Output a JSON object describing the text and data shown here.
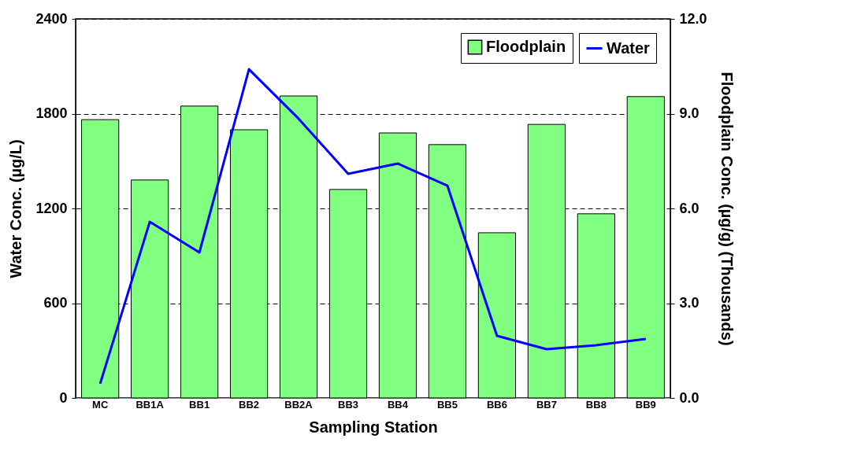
{
  "chart_data": {
    "type": "bar",
    "xlabel": "Sampling Station",
    "ylabel": "Water Conc. (µg/L)",
    "y2label": "Floodplain Conc. (µg/g) (Thousands)",
    "categories": [
      "MC",
      "BB1A",
      "BB1",
      "BB2",
      "BB2A",
      "BB3",
      "BB4",
      "BB5",
      "BB6",
      "BB7",
      "BB8",
      "BB9"
    ],
    "series": [
      {
        "name": "Floodplain",
        "axis": "y2",
        "color": "#80ff80",
        "values": [
          8.81,
          6.9,
          9.24,
          8.49,
          9.56,
          6.6,
          8.39,
          8.02,
          5.23,
          8.66,
          5.83,
          9.54
        ]
      },
      {
        "name": "Water",
        "type": "line",
        "axis": "y",
        "color": "#0000ff",
        "values": [
          90,
          1115,
          921,
          2081,
          1768,
          1419,
          1484,
          1344,
          393,
          309,
          334,
          373
        ]
      }
    ],
    "ylim": [
      0,
      2400
    ],
    "yticks": [
      0,
      600,
      1200,
      1800,
      2400
    ],
    "y2lim": [
      0,
      12
    ],
    "y2ticks": [
      {
        "value": 0,
        "label": "0.0"
      },
      {
        "value": 3,
        "label": "3.0"
      },
      {
        "value": 6,
        "label": "6.0"
      },
      {
        "value": 9,
        "label": "9.0"
      },
      {
        "value": 12,
        "label": "12.0"
      }
    ],
    "grid": "y",
    "legend": "top right",
    "line_style": "solid",
    "marker": "none"
  }
}
